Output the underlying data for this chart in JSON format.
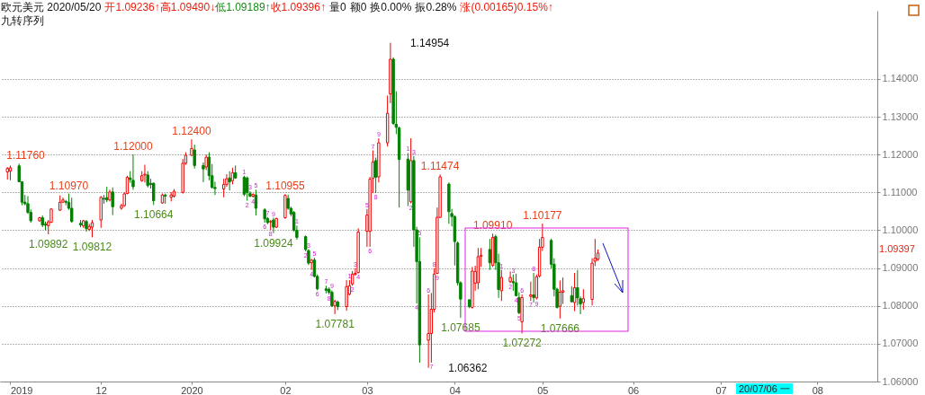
{
  "chart_data": {
    "type": "candlestick",
    "title": "欧元美元 2020/05/20",
    "subtitle": "九转序列",
    "x": [
      "2019-10-31",
      "2019-11-01",
      "2019-11-04",
      "2019-11-05",
      "2019-11-06",
      "2019-11-07",
      "2019-11-08",
      "2019-11-11",
      "2019-11-12",
      "2019-11-13",
      "2019-11-14",
      "2019-11-15",
      "2019-11-18",
      "2019-11-19",
      "2019-11-20",
      "2019-11-21",
      "2019-11-22",
      "2019-11-25",
      "2019-11-26",
      "2019-11-27",
      "2019-11-28",
      "2019-11-29",
      "2019-12-02",
      "2019-12-03",
      "2019-12-04",
      "2019-12-05",
      "2019-12-06",
      "2019-12-09",
      "2019-12-10",
      "2019-12-11",
      "2019-12-12",
      "2019-12-13",
      "2019-12-16",
      "2019-12-17",
      "2019-12-18",
      "2019-12-19",
      "2019-12-20",
      "2019-12-23",
      "2019-12-24",
      "2019-12-26",
      "2019-12-27",
      "2019-12-30",
      "2019-12-31",
      "2020-01-02",
      "2020-01-03",
      "2020-01-06",
      "2020-01-07",
      "2020-01-08",
      "2020-01-09",
      "2020-01-10",
      "2020-01-13",
      "2020-01-14",
      "2020-01-15",
      "2020-01-16",
      "2020-01-17",
      "2020-01-20",
      "2020-01-21",
      "2020-01-22",
      "2020-01-23",
      "2020-01-24",
      "2020-01-27",
      "2020-01-28",
      "2020-01-29",
      "2020-01-30",
      "2020-01-31",
      "2020-02-03",
      "2020-02-04",
      "2020-02-05",
      "2020-02-06",
      "2020-02-07",
      "2020-02-10",
      "2020-02-11",
      "2020-02-12",
      "2020-02-13",
      "2020-02-14",
      "2020-02-17",
      "2020-02-18",
      "2020-02-19",
      "2020-02-20",
      "2020-02-21",
      "2020-02-24",
      "2020-02-25",
      "2020-02-26",
      "2020-02-27",
      "2020-02-28",
      "2020-03-02",
      "2020-03-03",
      "2020-03-04",
      "2020-03-05",
      "2020-03-06",
      "2020-03-09",
      "2020-03-10",
      "2020-03-11",
      "2020-03-12",
      "2020-03-13",
      "2020-03-16",
      "2020-03-17",
      "2020-03-18",
      "2020-03-19",
      "2020-03-20",
      "2020-03-23",
      "2020-03-24",
      "2020-03-25",
      "2020-03-26",
      "2020-03-27",
      "2020-03-30",
      "2020-03-31",
      "2020-04-01",
      "2020-04-02",
      "2020-04-03",
      "2020-04-06",
      "2020-04-07",
      "2020-04-08",
      "2020-04-09",
      "2020-04-10",
      "2020-04-13",
      "2020-04-14",
      "2020-04-15",
      "2020-04-16",
      "2020-04-17",
      "2020-04-20",
      "2020-04-21",
      "2020-04-22",
      "2020-04-23",
      "2020-04-24",
      "2020-04-27",
      "2020-04-28",
      "2020-04-29",
      "2020-04-30",
      "2020-05-01",
      "2020-05-04",
      "2020-05-05",
      "2020-05-06",
      "2020-05-07",
      "2020-05-08",
      "2020-05-11",
      "2020-05-12",
      "2020-05-13",
      "2020-05-14",
      "2020-05-15",
      "2020-05-18",
      "2020-05-19",
      "2020-05-20"
    ],
    "ohlc": [
      [
        1.1154,
        1.1167,
        1.1134,
        1.1163
      ],
      [
        1.1156,
        1.1171,
        1.1132,
        1.1165
      ],
      [
        1.117,
        1.1176,
        1.1127,
        1.1128
      ],
      [
        1.1128,
        1.1128,
        1.1066,
        1.1074
      ],
      [
        1.1074,
        1.1093,
        1.1066,
        1.107
      ],
      [
        1.107,
        1.109,
        1.1043,
        1.1047
      ],
      [
        1.1047,
        1.1055,
        1.102,
        1.1025
      ],
      [
        1.1025,
        1.1035,
        1.1022,
        1.1033
      ],
      [
        1.1033,
        1.1039,
        1.1008,
        1.1014
      ],
      [
        1.1016,
        1.1023,
        1.1,
        1.1013
      ],
      [
        1.1012,
        1.1027,
        1.09892,
        1.1022
      ],
      [
        1.1021,
        1.1058,
        1.1019,
        1.1056
      ],
      [
        1.1053,
        1.1092,
        1.1051,
        1.1074
      ],
      [
        1.1074,
        1.1086,
        1.1072,
        1.108
      ],
      [
        1.1076,
        1.108,
        1.1066,
        1.1074
      ],
      [
        1.1074,
        1.1097,
        1.1054,
        1.1058
      ],
      [
        1.1058,
        1.1086,
        1.102,
        1.1023
      ],
      [
        1.1018,
        1.1027,
        1.1008,
        1.1014
      ],
      [
        1.1012,
        1.1027,
        1.1006,
        1.1025
      ],
      [
        1.1023,
        1.1027,
        1.0996,
        1.1004
      ],
      [
        1.1002,
        1.1017,
        1.0998,
        1.101
      ],
      [
        1.1008,
        1.1027,
        1.09812,
        1.102
      ],
      [
        1.1027,
        1.109,
        1.1006,
        1.1087
      ],
      [
        1.1084,
        1.1093,
        1.107,
        1.1082
      ],
      [
        1.1086,
        1.1115,
        1.1074,
        1.108
      ],
      [
        1.108,
        1.1107,
        1.1076,
        1.1101
      ],
      [
        1.1101,
        1.1113,
        1.104,
        1.1062
      ],
      [
        1.1058,
        1.107,
        1.1054,
        1.1065
      ],
      [
        1.1065,
        1.11,
        1.1062,
        1.1096
      ],
      [
        1.1097,
        1.1144,
        1.1095,
        1.114
      ],
      [
        1.1138,
        1.1156,
        1.1125,
        1.1134
      ],
      [
        1.1132,
        1.12,
        1.1107,
        1.1115
      ],
      [
        1.1131,
        1.1156,
        1.1128,
        1.1144
      ],
      [
        1.1146,
        1.1173,
        1.1126,
        1.1148
      ],
      [
        1.1146,
        1.1156,
        1.1113,
        1.1118
      ],
      [
        1.1124,
        1.1136,
        1.111,
        1.1121
      ],
      [
        1.1124,
        1.1126,
        1.10664,
        1.1078
      ],
      [
        1.1072,
        1.1097,
        1.107,
        1.1093
      ],
      [
        1.1093,
        1.1097,
        1.107,
        1.109
      ],
      [
        1.1087,
        1.1101,
        1.1076,
        1.1093
      ],
      [
        1.109,
        1.1109,
        1.1086,
        1.1103
      ],
      [
        1.11,
        1.1188,
        1.1097,
        1.1177
      ],
      [
        1.1177,
        1.1206,
        1.1173,
        1.1198
      ],
      [
        1.1198,
        1.124,
        1.1196,
        1.1216
      ],
      [
        1.1212,
        1.1226,
        1.1163,
        1.1171
      ],
      [
        1.1171,
        1.1179,
        1.1127,
        1.1162
      ],
      [
        1.1167,
        1.12,
        1.1159,
        1.1193
      ],
      [
        1.1193,
        1.1206,
        1.1132,
        1.1144
      ],
      [
        1.1144,
        1.1175,
        1.111,
        1.1113
      ],
      [
        1.1113,
        1.1128,
        1.1093,
        1.111
      ],
      [
        1.1109,
        1.1136,
        1.1087,
        1.1121
      ],
      [
        1.1121,
        1.1148,
        1.1115,
        1.1136
      ],
      [
        1.1138,
        1.1156,
        1.1105,
        1.1128
      ],
      [
        1.1131,
        1.1165,
        1.1121,
        1.1152
      ],
      [
        1.1152,
        1.1171,
        1.1136,
        1.1138
      ],
      [
        1.114,
        1.1144,
        1.109,
        1.1095
      ],
      [
        1.1138,
        1.1142,
        1.1078,
        1.11
      ],
      [
        1.1097,
        1.1103,
        1.1087,
        1.109
      ],
      [
        1.109,
        1.1097,
        1.1086,
        1.1095
      ],
      [
        1.1093,
        1.1107,
        1.1039,
        1.1058
      ],
      [
        1.1054,
        1.1058,
        1.102,
        1.103
      ],
      [
        1.1031,
        1.1035,
        1.1016,
        1.102
      ],
      [
        1.1022,
        1.1027,
        1.1,
        1.1023
      ],
      [
        1.1027,
        1.1033,
        1.09924,
        1.1008
      ],
      [
        1.1008,
        1.1033,
        1.1006,
        1.1031
      ],
      [
        1.1033,
        1.10955,
        1.103,
        1.1092
      ],
      [
        1.1084,
        1.1094,
        1.1054,
        1.1058
      ],
      [
        1.1058,
        1.1062,
        1.1037,
        1.1043
      ],
      [
        1.1047,
        1.1051,
        1.0996,
        1.1
      ],
      [
        1.1,
        1.1012,
        1.0975,
        1.0981
      ],
      [
        1.0983,
        1.0986,
        1.0944,
        1.0949
      ],
      [
        1.0946,
        1.095,
        1.0908,
        1.0913
      ],
      [
        1.0914,
        1.0924,
        1.0895,
        1.0921
      ],
      [
        1.0921,
        1.0927,
        1.0875,
        1.0878
      ],
      [
        1.0878,
        1.0883,
        1.0841,
        1.0845
      ],
      [
        1.0845,
        1.0853,
        1.0833,
        1.0841
      ],
      [
        1.0844,
        1.0849,
        1.083,
        1.0836
      ],
      [
        1.0836,
        1.0841,
        1.0797,
        1.08
      ],
      [
        1.08,
        1.0816,
        1.07781,
        1.0812
      ],
      [
        1.081,
        1.0814,
        1.0789,
        1.0798
      ],
      [
        1.0798,
        1.0868,
        1.0787,
        1.0851
      ],
      [
        1.0831,
        1.0868,
        1.0828,
        1.0853
      ],
      [
        1.0858,
        1.0892,
        1.0853,
        1.0884
      ],
      [
        1.0883,
        1.09,
        1.088,
        1.0886
      ],
      [
        1.0888,
        1.1005,
        1.0886,
        1.0995
      ],
      [
        1.0997,
        1.1056,
        1.0956,
        1.104
      ],
      [
        1.0997,
        1.1141,
        1.0956,
        1.1135
      ],
      [
        1.1137,
        1.1211,
        1.1098,
        1.118
      ],
      [
        1.1184,
        1.1192,
        1.1098,
        1.114
      ],
      [
        1.1141,
        1.1243,
        1.1126,
        1.1231
      ],
      [
        1.1231,
        1.1356,
        1.1221,
        1.1309
      ],
      [
        1.136,
        1.14954,
        1.1336,
        1.1452
      ],
      [
        1.1452,
        1.1457,
        1.1278,
        1.1282
      ],
      [
        1.128,
        1.1367,
        1.1254,
        1.1272
      ],
      [
        1.127,
        1.1274,
        1.106,
        1.1187
      ],
      [
        1.1188,
        1.1204,
        1.1064,
        1.1106
      ],
      [
        1.1075,
        1.1243,
        1.1071,
        1.1184
      ],
      [
        1.1184,
        1.1196,
        1.0956,
        1.1001
      ],
      [
        1.1001,
        1.1009,
        1.0806,
        1.0917
      ],
      [
        1.0917,
        1.0981,
        1.065,
        1.0697
      ],
      [
        1.0709,
        1.083,
        1.06362,
        1.0727
      ],
      [
        1.0727,
        1.0834,
        1.065,
        1.0791
      ],
      [
        1.0791,
        1.09,
        1.0783,
        1.0884
      ],
      [
        1.0886,
        1.106,
        1.0884,
        1.1034
      ],
      [
        1.1034,
        1.11474,
        1.1032,
        1.1141
      ],
      [
        1.1122,
        1.1126,
        1.1017,
        1.1049
      ],
      [
        1.1044,
        1.1056,
        1.101,
        1.1036
      ],
      [
        1.1036,
        1.104,
        1.0907,
        1.097
      ],
      [
        1.0966,
        1.097,
        1.0854,
        1.0861
      ],
      [
        1.0861,
        1.0865,
        1.07685,
        1.0818
      ],
      [
        1.0816,
        1.0818,
        1.0794,
        1.0798
      ],
      [
        1.0796,
        1.0903,
        1.0793,
        1.0892
      ],
      [
        1.086,
        1.0906,
        1.084,
        1.0891
      ],
      [
        1.0861,
        1.0953,
        1.0844,
        1.093
      ],
      [
        1.0931,
        1.0953,
        1.0903,
        1.0934
      ],
      [
        1.0949,
        1.0977,
        1.0895,
        1.0914
      ],
      [
        1.0907,
        1.0991,
        1.0903,
        1.0981
      ],
      [
        1.0983,
        1.0988,
        1.0895,
        1.0914
      ],
      [
        1.0914,
        1.0938,
        1.0821,
        1.0843
      ],
      [
        1.084,
        1.0895,
        1.0813,
        1.0875
      ],
      [
        1.0864,
        1.0891,
        1.086,
        1.0875
      ],
      [
        1.0864,
        1.0883,
        1.084,
        1.0861
      ],
      [
        1.0861,
        1.0885,
        1.0825,
        1.0827
      ],
      [
        1.0822,
        1.0836,
        1.0778,
        1.0782
      ],
      [
        1.0758,
        1.083,
        1.07272,
        1.0822
      ],
      [
        1.0825,
        1.0864,
        1.0813,
        1.0829
      ],
      [
        1.0829,
        1.0887,
        1.0809,
        1.0822
      ],
      [
        1.0821,
        1.0883,
        1.0817,
        1.0877
      ],
      [
        1.0879,
        1.0977,
        1.0875,
        1.0955
      ],
      [
        1.0955,
        1.10177,
        1.0945,
        1.0981
      ],
      [
        1.0973,
        1.0977,
        1.0899,
        1.091
      ],
      [
        1.091,
        1.0926,
        1.0825,
        1.0844
      ],
      [
        1.0844,
        1.0848,
        1.0793,
        1.0796
      ],
      [
        1.0799,
        1.0867,
        1.07666,
        1.0836
      ],
      [
        1.0836,
        1.0875,
        1.0805,
        1.084
      ],
      [
        1.0827,
        1.0852,
        1.0809,
        1.0811
      ],
      [
        1.0809,
        1.0887,
        1.0786,
        1.0848
      ],
      [
        1.0848,
        1.0895,
        1.0801,
        1.0821
      ],
      [
        1.0819,
        1.0825,
        1.0778,
        1.0805
      ],
      [
        1.0809,
        1.0844,
        1.079,
        1.0819
      ],
      [
        1.0817,
        1.0926,
        1.0801,
        1.0913
      ],
      [
        1.0918,
        1.0977,
        1.0905,
        1.0926
      ],
      [
        1.09236,
        1.0949,
        1.09189,
        1.09396
      ]
    ],
    "colors": [
      "#f00000",
      "#f00000",
      "#008000",
      "#008000",
      "#008000",
      "#008000",
      "#008000",
      "#f00000",
      "#008000",
      "#008000",
      "#f00000",
      "#f00000",
      "#f00000",
      "#f00000",
      "#008000",
      "#008000",
      "#008000",
      "#008000",
      "#f00000",
      "#008000",
      "#f00000",
      "#f00000",
      "#f00000",
      "#008000",
      "#008000",
      "#f00000",
      "#008000",
      "#f00000",
      "#f00000",
      "#f00000",
      "#008000",
      "#008000",
      "#f00000",
      "#f00000",
      "#008000",
      "#008000",
      "#008000",
      "#f00000",
      "#008000",
      "#f00000",
      "#f00000",
      "#f00000",
      "#f00000",
      "#f00000",
      "#008000",
      "#008000",
      "#f00000",
      "#008000",
      "#008000",
      "#008000",
      "#f00000",
      "#f00000",
      "#008000",
      "#f00000",
      "#008000",
      "#008000",
      "#008000",
      "#008000",
      "#f00000",
      "#008000",
      "#008000",
      "#008000",
      "#f00000",
      "#008000",
      "#f00000",
      "#f00000",
      "#008000",
      "#008000",
      "#008000",
      "#008000",
      "#008000",
      "#008000",
      "#f00000",
      "#008000",
      "#008000",
      "#008000",
      "#008000",
      "#008000",
      "#f00000",
      "#008000",
      "#f00000",
      "#f00000",
      "#f00000",
      "#f00000",
      "#f00000",
      "#f00000",
      "#f00000",
      "#f00000",
      "#008000",
      "#f00000",
      "#f00000",
      "#f00000",
      "#008000",
      "#008000",
      "#008000",
      "#008000",
      "#f00000",
      "#008000",
      "#008000",
      "#008000",
      "#f00000",
      "#f00000",
      "#f00000",
      "#f00000",
      "#f00000",
      "#008000",
      "#008000",
      "#008000",
      "#008000",
      "#008000",
      "#008000",
      "#f00000",
      "#f00000",
      "#f00000",
      "#f00000",
      "#008000",
      "#f00000",
      "#008000",
      "#008000",
      "#f00000",
      "#f00000",
      "#008000",
      "#008000",
      "#008000",
      "#f00000",
      "#f00000",
      "#008000",
      "#f00000",
      "#f00000",
      "#f00000",
      "#008000",
      "#008000",
      "#008000",
      "#f00000",
      "#f00000",
      "#008000",
      "#f00000",
      "#008000",
      "#008000",
      "#f00000",
      "#f00000",
      "#f00000",
      "#f00000"
    ],
    "xlim": [
      "2019-10-30",
      "2020-08-22"
    ],
    "xticks": [
      {
        "value": "2019-11-01",
        "label": "2019"
      },
      {
        "value": "2019-12-02",
        "label": "12"
      },
      {
        "value": "2020-01-02",
        "label": "2020"
      },
      {
        "value": "2020-02-03",
        "label": "02"
      },
      {
        "value": "2020-03-02",
        "label": "03"
      },
      {
        "value": "2020-04-01",
        "label": "04"
      },
      {
        "value": "2020-05-01",
        "label": "05"
      },
      {
        "value": "2020-06-01",
        "label": "06"
      },
      {
        "value": "2020-07-01",
        "label": "07"
      },
      {
        "value": "2020-08-03",
        "label": "08"
      }
    ],
    "ylim": [
      1.06,
      1.158
    ],
    "yticks": [
      {
        "value": 1.06,
        "label": "1.06000"
      },
      {
        "value": 1.07,
        "label": "1.07000"
      },
      {
        "value": 1.08,
        "label": "1.08000"
      },
      {
        "value": 1.09,
        "label": "1.09000"
      },
      {
        "value": 1.1,
        "label": "1.10000"
      },
      {
        "value": 1.11,
        "label": "1.11000"
      },
      {
        "value": 1.12,
        "label": "1.12000"
      },
      {
        "value": 1.13,
        "label": "1.13000"
      },
      {
        "value": 1.14,
        "label": "1.14000"
      }
    ],
    "grid": "y",
    "annotations": [
      "开1.09236↑",
      "高1.09490↓",
      "低1.09189↑",
      "收1.09396↑",
      "量0",
      "额0",
      "换0.00%",
      "振0.28%",
      "涨(0.00165)0.15%↑",
      "1.09397",
      "20/07/06 一",
      {
        "text": "1.11760",
        "x": "2019-11-04",
        "y": 1.1176
      },
      {
        "text": "1.09892",
        "x": "2019-11-14",
        "y": 1.09892
      },
      {
        "text": "1.10970",
        "x": "2019-11-21",
        "y": 1.1097
      },
      {
        "text": "1.09812",
        "x": "2019-11-29",
        "y": 1.09812
      },
      {
        "text": "1.12000",
        "x": "2019-12-13",
        "y": 1.12
      },
      {
        "text": "1.10664",
        "x": "2019-12-20",
        "y": 1.10664
      },
      {
        "text": "1.12400",
        "x": "2020-01-02",
        "y": 1.124
      },
      {
        "text": "1.09924",
        "x": "2020-01-30",
        "y": 1.09924
      },
      {
        "text": "1.10955",
        "x": "2020-02-03",
        "y": 1.10955
      },
      {
        "text": "1.07781",
        "x": "2020-02-20",
        "y": 1.07781
      },
      {
        "text": "1.14954",
        "x": "2020-03-10",
        "y": 1.14954
      },
      {
        "text": "1.06362",
        "x": "2020-03-23",
        "y": 1.06362
      },
      {
        "text": "1.11474",
        "x": "2020-03-27",
        "y": 1.11474
      },
      {
        "text": "1.07685",
        "x": "2020-04-03",
        "y": 1.07685
      },
      {
        "text": "1.09910",
        "x": "2020-04-14",
        "y": 1.0991
      },
      {
        "text": "1.07272",
        "x": "2020-04-24",
        "y": 1.07272
      },
      {
        "text": "1.10177",
        "x": "2020-05-01",
        "y": 1.10177
      },
      {
        "text": "1.07666",
        "x": "2020-05-07",
        "y": 1.07666
      },
      {
        "text": "1",
        "x": "2020-01-20",
        "y": 1.1144
      },
      {
        "text": "2",
        "x": "2020-01-21",
        "y": 1.1078
      },
      {
        "text": "3",
        "x": "2020-01-22",
        "y": 1.1103
      },
      {
        "text": "4",
        "x": "2020-01-23",
        "y": 1.1086
      },
      {
        "text": "5",
        "x": "2020-01-24",
        "y": 1.1107
      },
      {
        "text": "6",
        "x": "2020-01-27",
        "y": 1.102
      },
      {
        "text": "7",
        "x": "2020-01-28",
        "y": 1.1035
      },
      {
        "text": "8",
        "x": "2020-01-29",
        "y": 1.1
      },
      {
        "text": "9",
        "x": "2020-01-30",
        "y": 1.1033
      },
      {
        "text": "1",
        "x": "2020-02-07",
        "y": 1.1012
      },
      {
        "text": "2",
        "x": "2020-02-10",
        "y": 1.0944
      },
      {
        "text": "3",
        "x": "2020-02-11",
        "y": 1.095
      },
      {
        "text": "4",
        "x": "2020-02-12",
        "y": 1.0895
      },
      {
        "text": "5",
        "x": "2020-02-13",
        "y": 1.0927
      },
      {
        "text": "6",
        "x": "2020-02-14",
        "y": 1.0841
      },
      {
        "text": "7",
        "x": "2020-02-17",
        "y": 1.0853
      },
      {
        "text": "8",
        "x": "2020-02-18",
        "y": 1.083
      },
      {
        "text": "9",
        "x": "2020-02-19",
        "y": 1.0841
      },
      {
        "text": "1",
        "x": "2020-02-25",
        "y": 1.0868
      },
      {
        "text": "2",
        "x": "2020-02-26",
        "y": 1.0853
      },
      {
        "text": "3",
        "x": "2020-02-27",
        "y": 1.09
      },
      {
        "text": "4",
        "x": "2020-02-28",
        "y": 1.0886
      },
      {
        "text": "5",
        "x": "2020-03-02",
        "y": 1.1056
      },
      {
        "text": "6",
        "x": "2020-03-03",
        "y": 1.0956
      },
      {
        "text": "7",
        "x": "2020-03-04",
        "y": 1.1211
      },
      {
        "text": "8",
        "x": "2020-03-05",
        "y": 1.1098
      },
      {
        "text": "9",
        "x": "2020-03-06",
        "y": 1.1243
      },
      {
        "text": "1",
        "x": "2020-03-16",
        "y": 1.1204
      },
      {
        "text": "2",
        "x": "2020-03-17",
        "y": 1.1071
      },
      {
        "text": "3",
        "x": "2020-03-18",
        "y": 1.1196
      },
      {
        "text": "4",
        "x": "2020-03-19",
        "y": 1.0806
      },
      {
        "text": "5",
        "x": "2020-03-20",
        "y": 1.0981
      },
      {
        "text": "6",
        "x": "2020-03-23",
        "y": 1.083
      },
      {
        "text": "7",
        "x": "2020-03-24",
        "y": 1.065
      },
      {
        "text": "8",
        "x": "2020-03-25",
        "y": 1.09
      },
      {
        "text": "9",
        "x": "2020-03-26",
        "y": 1.0884
      },
      {
        "text": "1",
        "x": "2020-04-17",
        "y": 1.0895
      },
      {
        "text": "2",
        "x": "2020-04-20",
        "y": 1.086
      },
      {
        "text": "3",
        "x": "2020-04-21",
        "y": 1.0883
      },
      {
        "text": "4",
        "x": "2020-04-22",
        "y": 1.0825
      },
      {
        "text": "5",
        "x": "2020-04-23",
        "y": 1.0778
      },
      {
        "text": "6",
        "x": "2020-04-24",
        "y": 1.083
      },
      {
        "text": "7",
        "x": "2020-04-27",
        "y": 1.0813
      },
      {
        "text": "8",
        "x": "2020-04-28",
        "y": 1.0887
      },
      {
        "text": "9",
        "x": "2020-04-29",
        "y": 1.0817
      }
    ]
  }
}
